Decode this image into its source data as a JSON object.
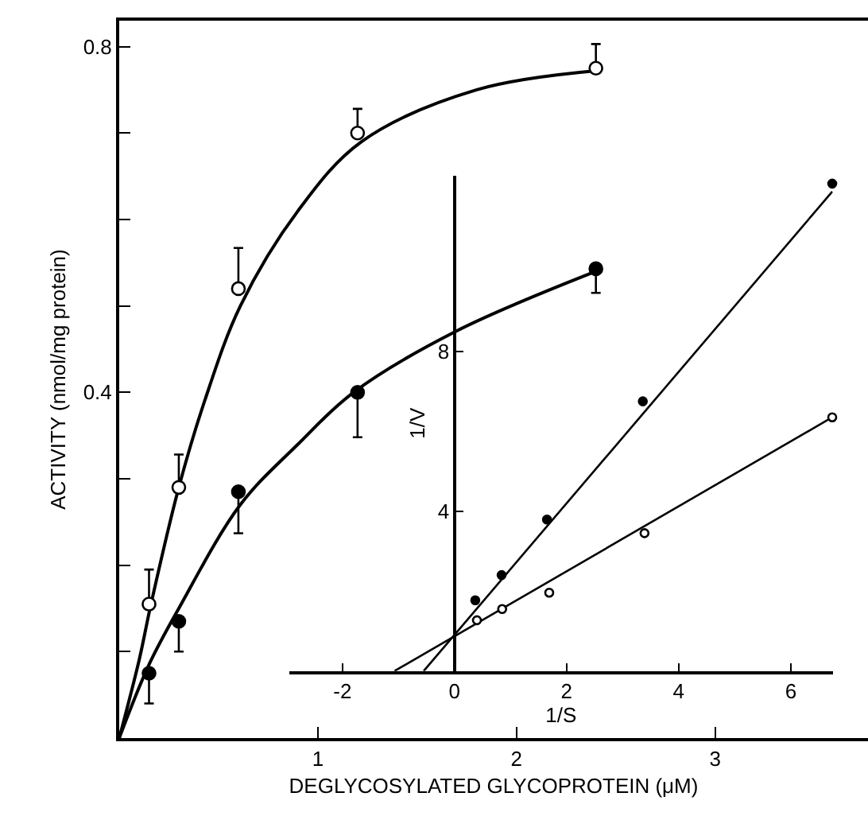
{
  "chart_data": [
    {
      "type": "scatter",
      "xlabel": "DEGLYCOSYLATED GLYCOPROTEIN (μM)",
      "ylabel": "ACTIVITY (nmol/mg protein)",
      "xlim": [
        0,
        3.77
      ],
      "ylim": [
        0,
        0.83
      ],
      "xticks": [
        1,
        2,
        3
      ],
      "yticks": [
        {
          "value": 0.1,
          "label": null
        },
        {
          "value": 0.2,
          "label": null
        },
        {
          "value": 0.3,
          "label": null
        },
        0.4,
        {
          "value": 0.5,
          "label": null
        },
        {
          "value": 0.6,
          "label": null
        },
        {
          "value": 0.7,
          "label": null
        },
        0.8
      ],
      "grid": false,
      "series": [
        {
          "type": "line",
          "color": "#000000",
          "marker": "none",
          "line_style": "solid",
          "x": [
            0,
            0.1,
            0.16,
            0.3,
            0.43,
            0.61,
            0.9,
            1.22,
            1.8,
            2.4
          ],
          "values": [
            0,
            0.09,
            0.155,
            0.29,
            0.39,
            0.5,
            0.61,
            0.69,
            0.75,
            0.772
          ]
        },
        {
          "type": "line",
          "color": "#000000",
          "marker": "none",
          "line_style": "solid",
          "x": [
            0,
            0.15,
            0.3,
            0.61,
            0.9,
            1.18,
            1.69,
            2.4
          ],
          "values": [
            0,
            0.085,
            0.15,
            0.27,
            0.34,
            0.4,
            0.47,
            0.54
          ]
        },
        {
          "color": "#ffffff",
          "marker": "circle",
          "x": [
            0.15,
            0.3,
            0.6,
            1.2,
            2.4
          ],
          "values": [
            0.155,
            0.29,
            0.52,
            0.7,
            0.775
          ],
          "errors": [
            [
              0.155,
              0.195
            ],
            [
              0.29,
              0.328
            ],
            [
              0.52,
              0.567
            ],
            [
              0.7,
              0.728
            ],
            [
              0.775,
              0.803
            ]
          ]
        },
        {
          "color": "#000000",
          "marker": "circle",
          "x": [
            0.15,
            0.3,
            0.6,
            1.2,
            2.4
          ],
          "values": [
            0.075,
            0.135,
            0.285,
            0.4,
            0.543
          ],
          "errors": [
            [
              0.04,
              0.075
            ],
            [
              0.1,
              0.135
            ],
            [
              0.237,
              0.285
            ],
            [
              0.348,
              0.4
            ],
            [
              0.515,
              0.543
            ]
          ]
        }
      ]
    },
    {
      "type": "scatter",
      "xlabel": "1/S",
      "ylabel": "1/V",
      "xlim": [
        -2.95,
        6.75
      ],
      "ylim": [
        0,
        12.4
      ],
      "xticks": [
        -2,
        0,
        2,
        4,
        6
      ],
      "yticks": [
        4,
        8
      ],
      "grid": false,
      "series": [
        {
          "type": "line",
          "color": "#000000",
          "marker": "none",
          "line_style": "solid",
          "x": [
            -0.55,
            6.74
          ],
          "values": [
            0,
            12.0
          ]
        },
        {
          "type": "line",
          "color": "#000000",
          "marker": "none",
          "line_style": "solid",
          "x": [
            -1.07,
            6.74
          ],
          "values": [
            0,
            6.35
          ]
        },
        {
          "color": "#000000",
          "marker": "circle",
          "x": [
            0.37,
            0.84,
            1.65,
            3.36,
            6.74
          ],
          "values": [
            1.77,
            2.4,
            3.79,
            6.75,
            12.2
          ]
        },
        {
          "color": "#ffffff",
          "marker": "circle",
          "x": [
            0.4,
            0.85,
            1.69,
            3.39,
            6.74
          ],
          "values": [
            1.27,
            1.55,
            1.96,
            3.45,
            6.35
          ]
        }
      ]
    }
  ]
}
